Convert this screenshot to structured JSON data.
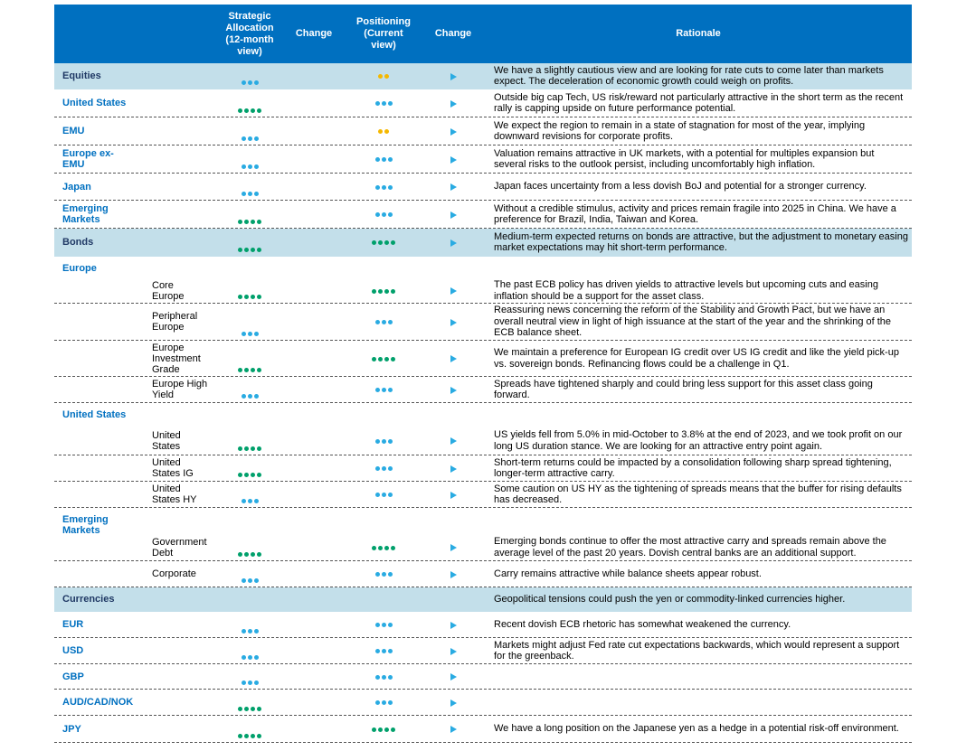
{
  "header": {
    "label": "",
    "allocation": "Strategic Allocation (12-month view)",
    "allocation_change": "Change",
    "positioning": "Positioning (Current view)",
    "positioning_change": "Change",
    "rationale": "Rationale"
  },
  "dot_colors": {
    "2": "#f5b800",
    "3": "#29abe2",
    "4": "#00a06b"
  },
  "rows": [
    {
      "label": "Equities",
      "style": "section",
      "allocation": 3,
      "positioning": 2,
      "rationale": "We have a slightly cautious view and are looking for rate cuts to come later than markets expect. The deceleration of economic growth could weigh on profits."
    },
    {
      "label": "United States",
      "style": "item",
      "allocation": 4,
      "positioning": 3,
      "rationale": "Outside big cap Tech, US risk/reward not particularly attractive in the short term as the recent rally is capping upside on future performance potential."
    },
    {
      "label": "EMU",
      "style": "item",
      "allocation": 3,
      "positioning": 2,
      "rationale": "We expect the region to remain in a state of stagnation for most of the year, implying downward revisions for corporate profits."
    },
    {
      "label": "Europe ex-EMU",
      "style": "item",
      "allocation": 3,
      "positioning": 3,
      "rationale": "Valuation remains attractive in UK markets, with a potential for multiples expansion but several risks to the outlook persist, including uncomfortably high inflation."
    },
    {
      "label": "Japan",
      "style": "item",
      "allocation": 3,
      "positioning": 3,
      "rationale": "Japan faces uncertainty from a less dovish BoJ and potential for a stronger currency."
    },
    {
      "label": "Emerging Markets",
      "style": "item",
      "allocation": 4,
      "positioning": 3,
      "rationale": "Without a credible stimulus, activity and prices remain fragile into 2025 in China. We have a preference for Brazil, India, Taiwan and Korea."
    },
    {
      "label": "Bonds",
      "style": "section",
      "allocation": 4,
      "positioning": 4,
      "rationale": "Medium-term expected returns on bonds are attractive, but the adjustment to monetary easing market expectations may hit short-term performance."
    },
    {
      "label": "Europe",
      "style": "group"
    },
    {
      "label": "Core Europe",
      "style": "sub",
      "allocation": 4,
      "positioning": 4,
      "rationale": "The past ECB policy has driven yields to attractive levels but upcoming cuts and easing inflation should be a support for the asset class."
    },
    {
      "label": "Peripheral Europe",
      "style": "sub",
      "allocation": 3,
      "positioning": 3,
      "rationale": "Reassuring news concerning the reform of the Stability and Growth Pact, but we have an overall neutral view in light of high issuance at the start of the year and the shrinking of the ECB balance sheet."
    },
    {
      "label": "Europe Investment Grade",
      "style": "sub",
      "allocation": 4,
      "positioning": 4,
      "rationale": "We maintain a preference for European IG credit over US IG credit and like the yield pick-up vs. sovereign bonds. Refinancing flows could be a challenge in Q1."
    },
    {
      "label": "Europe High Yield",
      "style": "sub",
      "allocation": 3,
      "positioning": 3,
      "rationale": "Spreads have tightened sharply and could bring less support for this asset class going forward."
    },
    {
      "label": "United States",
      "style": "group"
    },
    {
      "label": "United States",
      "style": "sub",
      "allocation": 4,
      "positioning": 3,
      "rationale": "US yields fell from 5.0% in mid-October to 3.8% at the end of 2023, and we took profit on our long US duration stance. We are looking for an attractive entry point again."
    },
    {
      "label": "United States IG",
      "style": "sub",
      "allocation": 4,
      "positioning": 3,
      "rationale": "Short-term returns could be impacted by a consolidation following sharp spread tightening, longer-term attractive carry."
    },
    {
      "label": "United States HY",
      "style": "sub",
      "allocation": 3,
      "positioning": 3,
      "rationale": "Some caution on US HY as the tightening of spreads means that the buffer for rising defaults has decreased."
    },
    {
      "label": "Emerging Markets",
      "style": "group"
    },
    {
      "label": "Government Debt",
      "style": "sub",
      "allocation": 4,
      "positioning": 4,
      "rationale": "Emerging bonds continue to offer the most attractive carry and spreads remain above the average level of the past 20 years. Dovish central banks are an additional support."
    },
    {
      "label": "Corporate",
      "style": "sub",
      "allocation": 3,
      "positioning": 3,
      "rationale": "Carry remains attractive while balance sheets appear robust."
    },
    {
      "label": "Currencies",
      "style": "section",
      "rationale": "Geopolitical tensions could push the yen or commodity-linked currencies higher."
    },
    {
      "label": "EUR",
      "style": "item",
      "allocation": 3,
      "positioning": 3,
      "rationale": "Recent dovish ECB rhetoric has somewhat weakened the currency."
    },
    {
      "label": "USD",
      "style": "item",
      "allocation": 3,
      "positioning": 3,
      "rationale": "Markets might adjust Fed rate cut expectations backwards, which would represent a support for the greenback."
    },
    {
      "label": "GBP",
      "style": "item",
      "allocation": 3,
      "positioning": 3
    },
    {
      "label": "AUD/CAD/NOK",
      "style": "item",
      "allocation": 4,
      "positioning": 3
    },
    {
      "label": "JPY",
      "style": "item",
      "allocation": 4,
      "positioning": 4,
      "rationale": "We have a long position on the Japanese yen as a hedge in a potential risk-off environment."
    }
  ]
}
